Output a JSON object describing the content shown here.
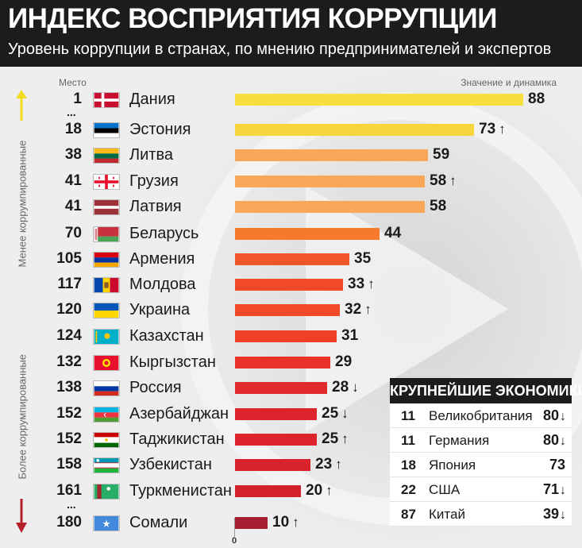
{
  "header": {
    "title": "ИНДЕКС ВОСПРИЯТИЯ КОРРУПЦИИ",
    "subtitle": "Уровень коррупции в странах, по мнению предпринимателей и экспертов"
  },
  "labels": {
    "place": "Место",
    "value": "Значение и динамика",
    "less_corrupt": "Менее коррумпированные",
    "more_corrupt": "Более коррумпированные",
    "ellipsis": "...",
    "axis_zero": "0"
  },
  "colors": {
    "arrow_up": "#f2da1c",
    "arrow_down": "#b31f2a",
    "header_bg": "#1c1c1c"
  },
  "chart_data": {
    "type": "bar",
    "orientation": "horizontal",
    "xlim": [
      0,
      88
    ],
    "categories": [
      "Дания",
      "Эстония",
      "Литва",
      "Грузия",
      "Латвия",
      "Беларусь",
      "Армения",
      "Молдова",
      "Украина",
      "Казахстан",
      "Кыргызстан",
      "Россия",
      "Азербайджан",
      "Таджикистан",
      "Узбекистан",
      "Туркменистан",
      "Сомали"
    ],
    "rows": [
      {
        "rank": "1",
        "country": "Дания",
        "value": 88,
        "trend": "",
        "color": "#f7df3e",
        "flag": "denmark"
      },
      {
        "rank": "18",
        "country": "Эстония",
        "value": 73,
        "trend": "↑",
        "color": "#f7d53c",
        "flag": "estonia"
      },
      {
        "rank": "38",
        "country": "Литва",
        "value": 59,
        "trend": "",
        "color": "#f9a85a",
        "flag": "lithuania"
      },
      {
        "rank": "41",
        "country": "Грузия",
        "value": 58,
        "trend": "↑",
        "color": "#f9a85a",
        "flag": "georgia"
      },
      {
        "rank": "41",
        "country": "Латвия",
        "value": 58,
        "trend": "",
        "color": "#f9a85a",
        "flag": "latvia"
      },
      {
        "rank": "70",
        "country": "Беларусь",
        "value": 44,
        "trend": "",
        "color": "#f77a2a",
        "flag": "belarus"
      },
      {
        "rank": "105",
        "country": "Армения",
        "value": 35,
        "trend": "",
        "color": "#f2562a",
        "flag": "armenia"
      },
      {
        "rank": "117",
        "country": "Молдова",
        "value": 33,
        "trend": "↑",
        "color": "#f24a28",
        "flag": "moldova"
      },
      {
        "rank": "120",
        "country": "Украина",
        "value": 32,
        "trend": "↑",
        "color": "#f24a28",
        "flag": "ukraine"
      },
      {
        "rank": "124",
        "country": "Казахстан",
        "value": 31,
        "trend": "",
        "color": "#ee4028",
        "flag": "kazakhstan"
      },
      {
        "rank": "132",
        "country": "Кыргызстан",
        "value": 29,
        "trend": "",
        "color": "#e8322a",
        "flag": "kyrgyzstan"
      },
      {
        "rank": "138",
        "country": "Россия",
        "value": 28,
        "trend": "↓",
        "color": "#e02a2c",
        "flag": "russia"
      },
      {
        "rank": "152",
        "country": "Азербайджан",
        "value": 25,
        "trend": "↓",
        "color": "#dd242c",
        "flag": "azerbaijan"
      },
      {
        "rank": "152",
        "country": "Таджикистан",
        "value": 25,
        "trend": "↑",
        "color": "#dd242c",
        "flag": "tajikistan"
      },
      {
        "rank": "158",
        "country": "Узбекистан",
        "value": 23,
        "trend": "↑",
        "color": "#d8222c",
        "flag": "uzbekistan"
      },
      {
        "rank": "161",
        "country": "Туркменистан",
        "value": 20,
        "trend": "↑",
        "color": "#d2202c",
        "flag": "turkmenistan"
      },
      {
        "rank": "180",
        "country": "Сомали",
        "value": 10,
        "trend": "↑",
        "color": "#a51f30",
        "flag": "somalia"
      }
    ]
  },
  "economies": {
    "title": "КРУПНЕЙШИЕ ЭКОНОМИКИ",
    "rows": [
      {
        "rank": "11",
        "country": "Великобритания",
        "value": "80",
        "trend": "↓"
      },
      {
        "rank": "11",
        "country": "Германия",
        "value": "80",
        "trend": "↓"
      },
      {
        "rank": "18",
        "country": "Япония",
        "value": "73",
        "trend": ""
      },
      {
        "rank": "22",
        "country": "США",
        "value": "71",
        "trend": "↓"
      },
      {
        "rank": "87",
        "country": "Китай",
        "value": "39",
        "trend": "↓"
      }
    ]
  }
}
